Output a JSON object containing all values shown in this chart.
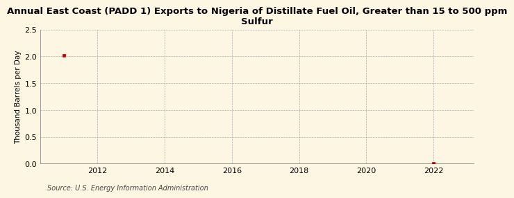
{
  "title": "Annual East Coast (PADD 1) Exports to Nigeria of Distillate Fuel Oil, Greater than 15 to 500 ppm\nSulfur",
  "ylabel": "Thousand Barrels per Day",
  "source": "Source: U.S. Energy Information Administration",
  "x_data": [
    2011,
    2022
  ],
  "y_data": [
    2.012,
    0.003
  ],
  "xlim": [
    2010.3,
    2023.2
  ],
  "ylim": [
    0,
    2.5
  ],
  "xticks": [
    2012,
    2014,
    2016,
    2018,
    2020,
    2022
  ],
  "yticks": [
    0.0,
    0.5,
    1.0,
    1.5,
    2.0,
    2.5
  ],
  "marker_color": "#bb0000",
  "marker_style": "s",
  "marker_size": 3.5,
  "grid_color": "#aaaaaa",
  "grid_linestyle": "--",
  "background_color": "#fdf6e3",
  "title_fontsize": 9.5,
  "axis_label_fontsize": 7.5,
  "tick_fontsize": 8,
  "source_fontsize": 7
}
